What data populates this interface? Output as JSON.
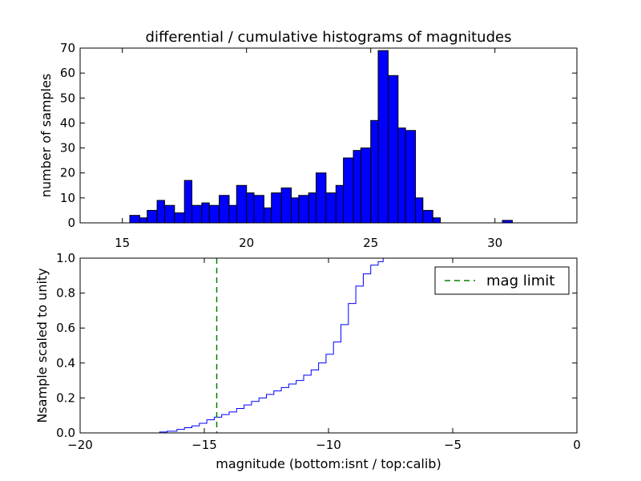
{
  "chart_data": [
    {
      "type": "bar",
      "title": "differential / cumulative histograms of magnitudes",
      "xlabel": "",
      "ylabel": "number of samples",
      "xlim": [
        13.3,
        33.3
      ],
      "ylim": [
        0,
        70
      ],
      "xticks": [
        15,
        20,
        25,
        30
      ],
      "yticks": [
        0,
        10,
        20,
        30,
        40,
        50,
        60,
        70
      ],
      "bar_color": "#0000ff",
      "bins": [
        {
          "left": 15.3,
          "right": 15.7,
          "value": 3
        },
        {
          "left": 15.7,
          "right": 16.0,
          "value": 2
        },
        {
          "left": 16.0,
          "right": 16.4,
          "value": 5
        },
        {
          "left": 16.4,
          "right": 16.7,
          "value": 9
        },
        {
          "left": 16.7,
          "right": 17.1,
          "value": 7
        },
        {
          "left": 17.1,
          "right": 17.5,
          "value": 4
        },
        {
          "left": 17.5,
          "right": 17.8,
          "value": 17
        },
        {
          "left": 17.8,
          "right": 18.2,
          "value": 7
        },
        {
          "left": 18.2,
          "right": 18.5,
          "value": 8
        },
        {
          "left": 18.5,
          "right": 18.9,
          "value": 7
        },
        {
          "left": 18.9,
          "right": 19.3,
          "value": 11
        },
        {
          "left": 19.3,
          "right": 19.6,
          "value": 7
        },
        {
          "left": 19.6,
          "right": 20.0,
          "value": 15
        },
        {
          "left": 20.0,
          "right": 20.3,
          "value": 12
        },
        {
          "left": 20.3,
          "right": 20.7,
          "value": 11
        },
        {
          "left": 20.7,
          "right": 21.0,
          "value": 6
        },
        {
          "left": 21.0,
          "right": 21.4,
          "value": 12
        },
        {
          "left": 21.4,
          "right": 21.8,
          "value": 14
        },
        {
          "left": 21.8,
          "right": 22.1,
          "value": 10
        },
        {
          "left": 22.1,
          "right": 22.5,
          "value": 11
        },
        {
          "left": 22.5,
          "right": 22.8,
          "value": 12
        },
        {
          "left": 22.8,
          "right": 23.2,
          "value": 20
        },
        {
          "left": 23.2,
          "right": 23.6,
          "value": 12
        },
        {
          "left": 23.6,
          "right": 23.9,
          "value": 15
        },
        {
          "left": 23.9,
          "right": 24.3,
          "value": 26
        },
        {
          "left": 24.3,
          "right": 24.6,
          "value": 29
        },
        {
          "left": 24.6,
          "right": 25.0,
          "value": 30
        },
        {
          "left": 25.0,
          "right": 25.3,
          "value": 41
        },
        {
          "left": 25.3,
          "right": 25.7,
          "value": 69
        },
        {
          "left": 25.7,
          "right": 26.1,
          "value": 59
        },
        {
          "left": 26.1,
          "right": 26.4,
          "value": 38
        },
        {
          "left": 26.4,
          "right": 26.8,
          "value": 37
        },
        {
          "left": 26.8,
          "right": 27.1,
          "value": 10
        },
        {
          "left": 27.1,
          "right": 27.5,
          "value": 5
        },
        {
          "left": 27.5,
          "right": 27.8,
          "value": 2
        },
        {
          "left": 30.3,
          "right": 30.7,
          "value": 1
        }
      ]
    },
    {
      "type": "line",
      "title": "",
      "xlabel": "magnitude (bottom:isnt / top:calib)",
      "ylabel": "Nsample scaled to unity",
      "xlim": [
        -20,
        0
      ],
      "ylim": [
        0,
        1.0
      ],
      "xticks": [
        -20,
        -15,
        -10,
        -5,
        0
      ],
      "ytick_labels": [
        "0.0",
        "0.2",
        "0.4",
        "0.6",
        "0.8",
        "1.0"
      ],
      "legend": {
        "position": "upper right",
        "entries": [
          {
            "label": "mag limit",
            "color": "#008000",
            "style": "dashed"
          }
        ]
      },
      "mag_limit": -14.5,
      "series": [
        {
          "name": "cumulative",
          "color": "#0000ff",
          "style": "steps",
          "x": [
            -20,
            -16.8,
            -16.5,
            -16.1,
            -15.8,
            -15.5,
            -15.2,
            -14.9,
            -14.6,
            -14.3,
            -14.0,
            -13.7,
            -13.4,
            -13.1,
            -12.8,
            -12.5,
            -12.2,
            -11.9,
            -11.6,
            -11.3,
            -11.0,
            -10.7,
            -10.4,
            -10.1,
            -9.8,
            -9.5,
            -9.2,
            -8.9,
            -8.6,
            -8.3,
            -8.0,
            -7.8,
            0
          ],
          "y": [
            0.0,
            0.005,
            0.01,
            0.02,
            0.03,
            0.04,
            0.055,
            0.075,
            0.09,
            0.105,
            0.12,
            0.14,
            0.16,
            0.18,
            0.2,
            0.22,
            0.24,
            0.26,
            0.28,
            0.3,
            0.33,
            0.36,
            0.4,
            0.45,
            0.52,
            0.62,
            0.74,
            0.84,
            0.91,
            0.96,
            0.98,
            1.0,
            1.0
          ]
        }
      ]
    }
  ]
}
